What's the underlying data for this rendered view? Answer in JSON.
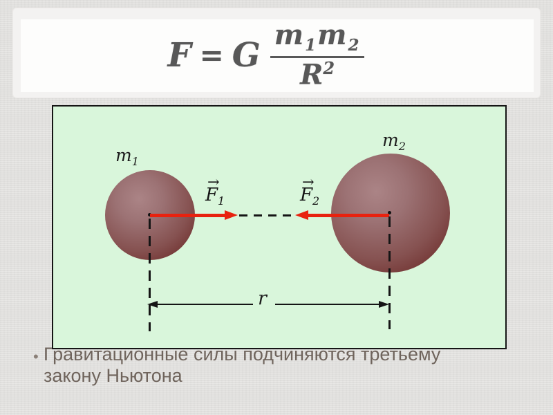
{
  "slide": {
    "background_color": "#e1e0de"
  },
  "formula_panel": {
    "lhs": "F",
    "equals": "=",
    "coefficient": "G",
    "numerator": {
      "m1": "m",
      "m1_sub": "1",
      "m2": "m",
      "m2_sub": "2"
    },
    "denominator": {
      "base": "R",
      "exponent": "2"
    },
    "text_color": "#585858",
    "panel_color": "#fdfdfc"
  },
  "diagram": {
    "background_color": "#d9f6db",
    "border_color": "#151515",
    "sphere_color_light": "#ab8486",
    "sphere_color_dark": "#692a28",
    "force_arrow_color": "#e8220f",
    "mass1_label": {
      "base": "m",
      "sub": "1"
    },
    "mass2_label": {
      "base": "m",
      "sub": "2"
    },
    "force1_label": {
      "vector_arrow": "→",
      "base": "F",
      "sub": "1"
    },
    "force2_label": {
      "vector_arrow": "→",
      "base": "F",
      "sub": "2"
    },
    "distance_label": "r"
  },
  "caption": {
    "bullet": "•",
    "line1": "Гравитационные силы подчиняются третьему",
    "line2": "закону Ньютона",
    "text_color": "#6f645c"
  }
}
